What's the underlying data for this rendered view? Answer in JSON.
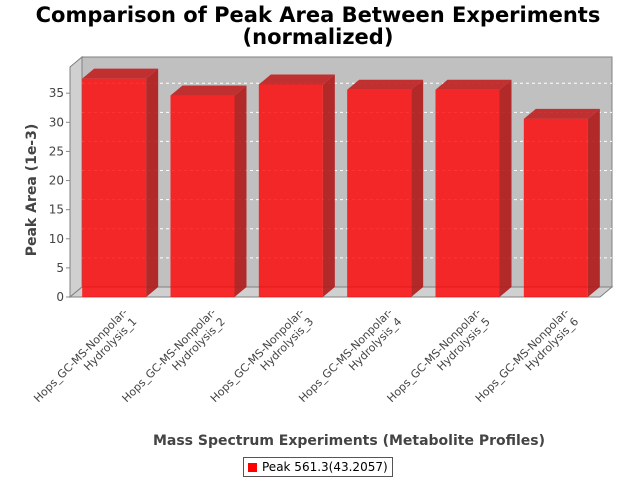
{
  "chart_data": {
    "type": "bar",
    "title_lines": [
      "Comparison of Peak Area Between Experiments",
      "(normalized)"
    ],
    "xlabel": "Mass Spectrum Experiments (Metabolite Profiles)",
    "ylabel": "Peak Area (1e-3)",
    "categories": [
      [
        "Hops_GC-MS-Nonpolar-",
        "Hydrolysis_1"
      ],
      [
        "Hops_GC-MS-Nonpolar-",
        "Hydrolysis_2"
      ],
      [
        "Hops_GC-MS-Nonpolar-",
        "Hydrolysis_3"
      ],
      [
        "Hops_GC-MS-Nonpolar-",
        "Hydrolysis_4"
      ],
      [
        "Hops_GC-MS-Nonpolar-",
        "Hydrolysis_5"
      ],
      [
        "Hops_GC-MS-Nonpolar-",
        "Hydrolysis_6"
      ]
    ],
    "series": [
      {
        "name": "Peak 561.3(43.2057)",
        "values": [
          37.5,
          34.6,
          36.5,
          35.6,
          35.6,
          30.6
        ],
        "color": "#ff0000"
      }
    ],
    "yticks": [
      "0",
      "5",
      "10",
      "15",
      "20",
      "25",
      "30",
      "35"
    ],
    "ylim": [
      0,
      39.5
    ],
    "grid": true,
    "legend_position": "bottom",
    "style": "3d-bar"
  }
}
